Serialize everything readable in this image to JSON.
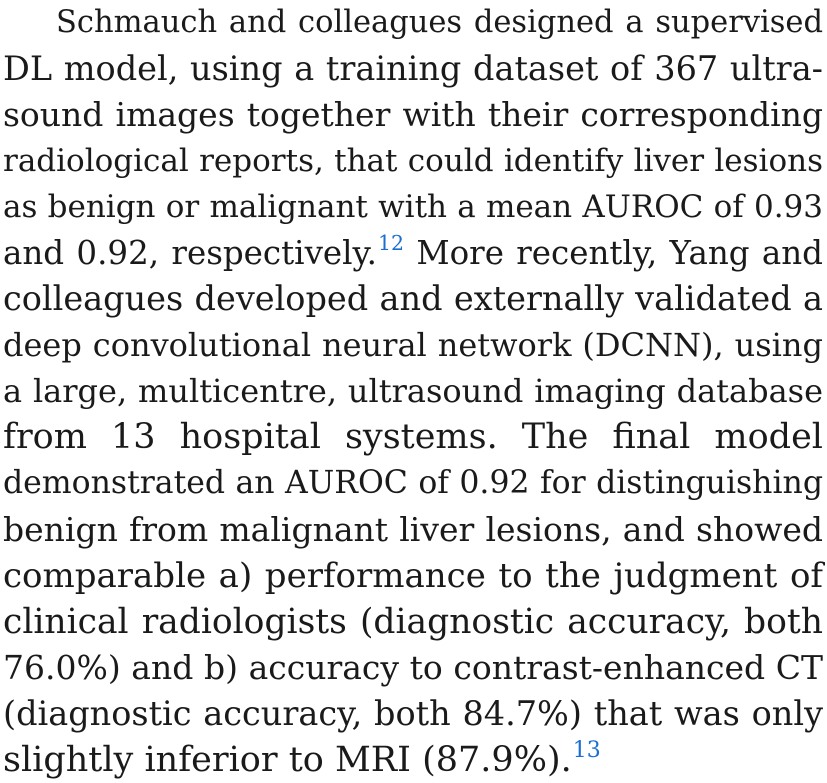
{
  "paragraph": {
    "lines": [
      "Schmauch and colleagues designed a supervised",
      "DL model, using a training dataset of 367 ultra-",
      "sound images together with their corresponding",
      "radiological reports, that could identify liver lesions",
      "as benign or malignant with a mean AUROC of 0.93",
      "and 0.92, respectively.",
      "More recently, Yang and",
      "colleagues developed and externally validated a",
      "deep convolutional neural network (DCNN), using",
      "a large, multicentre, ultrasound imaging database",
      "from 13 hospital systems. The final model",
      "demonstrated an AUROC of 0.92 for distinguishing",
      "benign from malignant liver lesions, and showed",
      "comparable a) performance to the judgment of",
      "clinical radiologists (diagnostic accuracy, both",
      "76.0%) and b) accuracy to contrast-enhanced CT",
      "(diagnostic accuracy, both 84.7%) that was only",
      "slightly inferior to MRI (87.9%)."
    ],
    "refs": {
      "ref_12": "12",
      "ref_13": "13"
    },
    "colors": {
      "text": "#1a1a1a",
      "reference_link": "#1a6fd1"
    }
  }
}
